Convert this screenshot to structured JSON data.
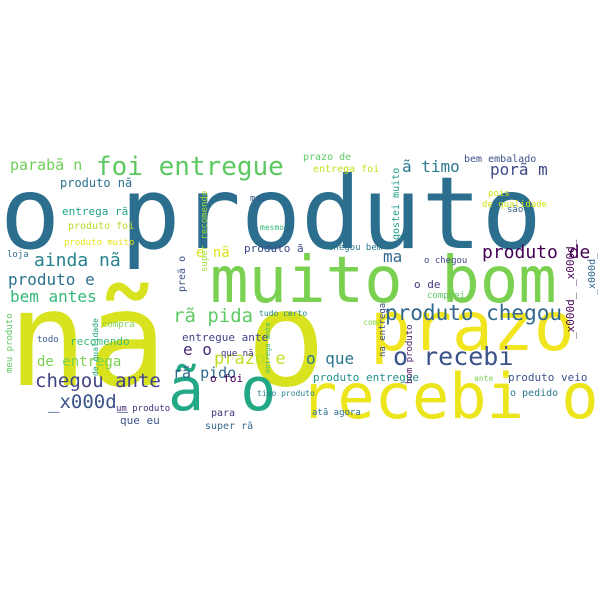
{
  "words": [
    {
      "text": "o produto",
      "color": "#2c6e8e"
    },
    {
      "text": "nã o",
      "color": "#d8e21e"
    },
    {
      "text": "muito bom",
      "color": "#7ad151"
    },
    {
      "text": "prazo",
      "color": "#f0e51f"
    },
    {
      "text": "recebi o",
      "color": "#ece51b"
    },
    {
      "text": "ã o",
      "color": "#22a884"
    },
    {
      "text": "foi entregue",
      "color": "#5ec962"
    },
    {
      "text": "produto chegou",
      "color": "#31688e"
    },
    {
      "text": "o recebi",
      "color": "#3b528b"
    },
    {
      "text": "chegou ante",
      "color": "#414487"
    },
    {
      "text": "produto de",
      "color": "#440154"
    },
    {
      "text": "ainda nã",
      "color": "#26828e"
    },
    {
      "text": "rã pida",
      "color": "#5ec962"
    },
    {
      "text": "_x000d_",
      "color": "#3b528b"
    },
    {
      "text": "produto e",
      "color": "#2c728e"
    },
    {
      "text": "bem antes",
      "color": "#35b779"
    },
    {
      "text": "prazo e",
      "color": "#bddf26"
    },
    {
      "text": "o que",
      "color": "#2a788e"
    },
    {
      "text": "porã m",
      "color": "#3e4989"
    },
    {
      "text": "ã timo",
      "color": "#2a788e"
    },
    {
      "text": "parabã n",
      "color": "#6ece58"
    },
    {
      "text": "ma",
      "color": "#31688e"
    },
    {
      "text": "e o",
      "color": "#482878"
    },
    {
      "text": "e nã",
      "color": "#dde318"
    },
    {
      "text": "rã pido",
      "color": "#31688e"
    },
    {
      "text": "de entrega",
      "color": "#7ad151"
    },
    {
      "text": "produto nã",
      "color": "#2c728e"
    },
    {
      "text": "entrega rã",
      "color": "#20a386"
    },
    {
      "text": "recomendo",
      "color": "#3fbc73"
    },
    {
      "text": "entregue ante",
      "color": "#414487"
    },
    {
      "text": "produto entregue",
      "color": "#21918c"
    },
    {
      "text": "produto veio",
      "color": "#3b528b"
    },
    {
      "text": "o foi",
      "color": "#440154"
    },
    {
      "text": "o pedido",
      "color": "#2a788e"
    },
    {
      "text": "prazo de",
      "color": "#5ec962"
    },
    {
      "text": "entrega foi",
      "color": "#c8e020"
    },
    {
      "text": "bem embalado",
      "color": "#3b528b"
    },
    {
      "text": "de qualidade",
      "color": "#d2e21b"
    },
    {
      "text": "produto foi",
      "color": "#b5de2b"
    },
    {
      "text": "produto muito",
      "color": "#e5e419"
    },
    {
      "text": "produto ã",
      "color": "#3e4989"
    },
    {
      "text": "que nã",
      "color": "#472d7b"
    },
    {
      "text": "chegou bem",
      "color": "#2a788e"
    },
    {
      "text": "o chegou",
      "color": "#404688"
    },
    {
      "text": "o de",
      "color": "#443983"
    },
    {
      "text": "comprei",
      "color": "#5ec962"
    },
    {
      "text": "como",
      "color": "#8fd744"
    },
    {
      "text": "_x000d_ _x000d_",
      "color": "#440154"
    },
    {
      "text": "_x000d_",
      "color": "#31688e"
    },
    {
      "text": "gostei muito",
      "color": "#1f9e89"
    },
    {
      "text": "super recomendo",
      "color": "#a0da39"
    },
    {
      "text": "mesmo",
      "color": "#32b67a"
    },
    {
      "text": "mai",
      "color": "#38598c"
    },
    {
      "text": "pois",
      "color": "#d0e11c"
    },
    {
      "text": "são",
      "color": "#34618d"
    },
    {
      "text": "loja",
      "color": "#2d708e"
    },
    {
      "text": "todo",
      "color": "#39568c"
    },
    {
      "text": "compra",
      "color": "#7fd34e"
    },
    {
      "text": "meu produto",
      "color": "#5ec962"
    },
    {
      "text": "que eu",
      "color": "#39568c"
    },
    {
      "text": "um produto",
      "color": "#472c7a"
    },
    {
      "text": "atã agora",
      "color": "#2d708e"
    },
    {
      "text": "super rã",
      "color": "#31688e"
    },
    {
      "text": "para",
      "color": "#453581"
    },
    {
      "text": "tudo certo",
      "color": "#24878e"
    },
    {
      "text": "timo produto",
      "color": "#26828e"
    },
    {
      "text": "na entrega",
      "color": "#3d4d8a"
    },
    {
      "text": "bom produto",
      "color": "#481b6d"
    },
    {
      "text": "preã o",
      "color": "#3b528b"
    },
    {
      "text": "entrega ante",
      "color": "#3aba76"
    },
    {
      "text": "ante",
      "color": "#7ad151"
    },
    {
      "text": "de qualidade",
      "color": "#20a486"
    }
  ]
}
